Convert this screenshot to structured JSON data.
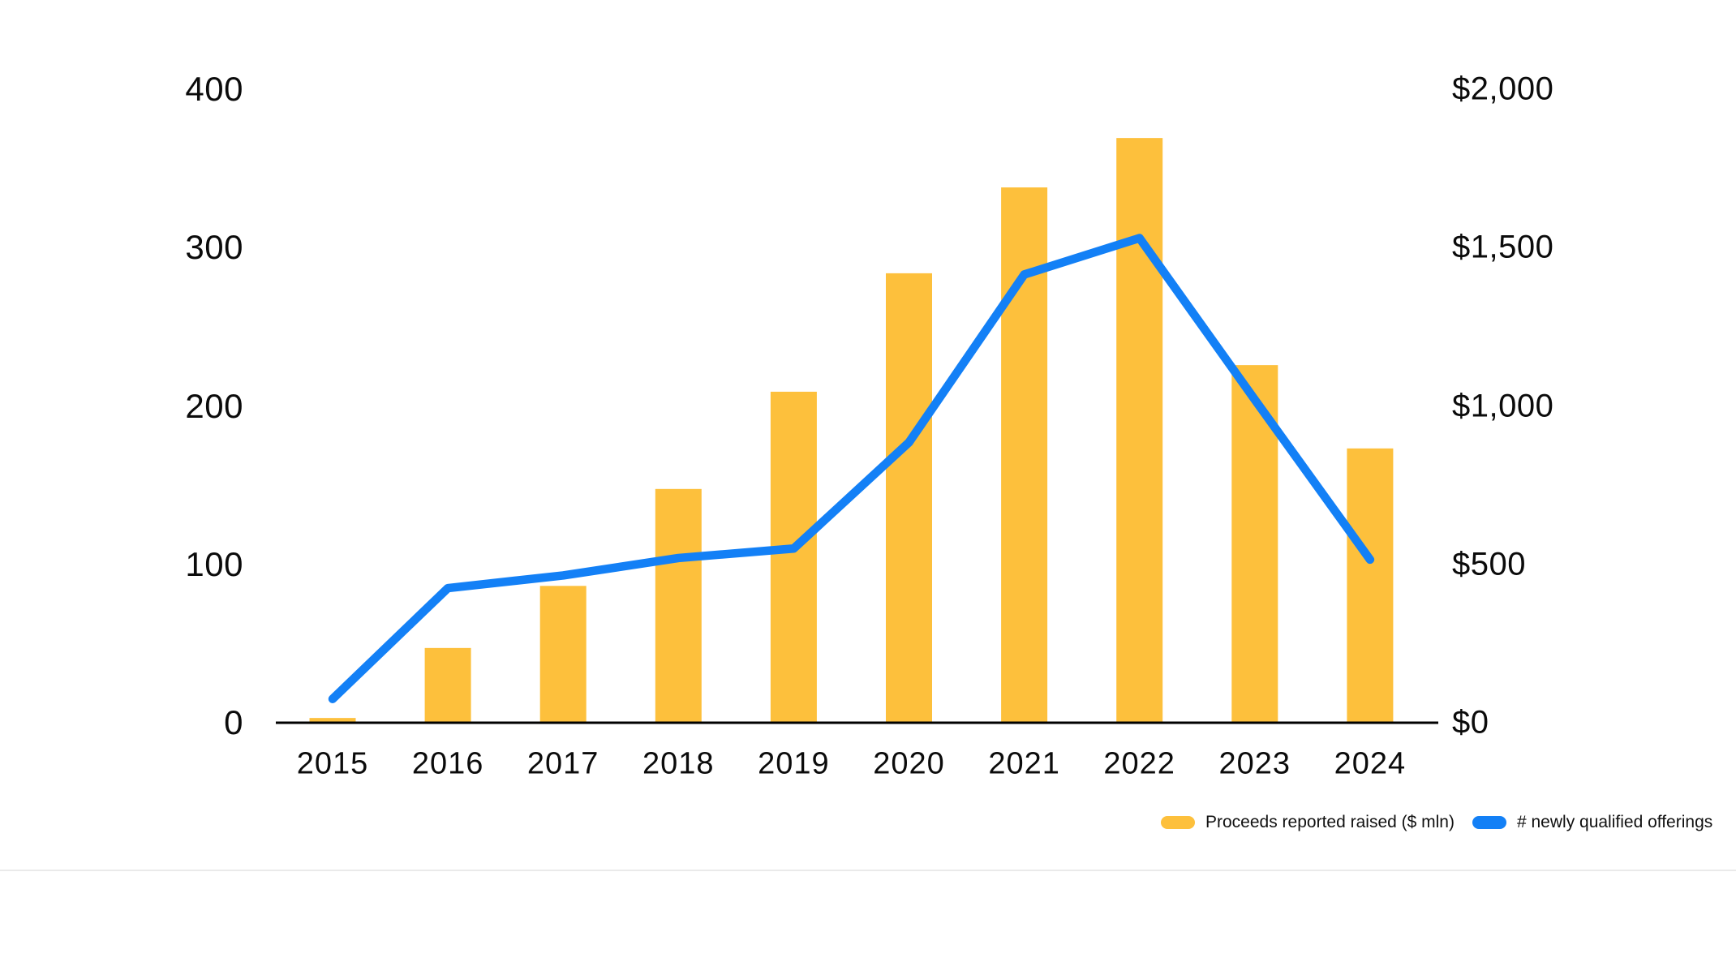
{
  "chart_data": {
    "type": "combo-bar-line",
    "categories": [
      "2015",
      "2016",
      "2017",
      "2018",
      "2019",
      "2020",
      "2021",
      "2022",
      "2023",
      "2024"
    ],
    "series": [
      {
        "name": "Proceeds reported raised ($ mln)",
        "type": "bar",
        "axis": "right",
        "color": "#FDC03C",
        "values": [
          15,
          236,
          432,
          738,
          1045,
          1419,
          1690,
          1846,
          1129,
          866
        ]
      },
      {
        "name": "# newly qualified offerings",
        "type": "line",
        "axis": "left",
        "color": "#1380F6",
        "values": [
          15,
          85,
          93,
          104,
          110,
          177,
          283,
          306,
          204,
          103
        ]
      }
    ],
    "left_axis": {
      "range": [
        0,
        400
      ],
      "tick_values": [
        0,
        100,
        200,
        300,
        400
      ],
      "tick_labels": [
        "0",
        "100",
        "200",
        "300",
        "400"
      ]
    },
    "right_axis": {
      "range": [
        0,
        2000
      ],
      "tick_values": [
        0,
        500,
        1000,
        1500,
        2000
      ],
      "tick_labels": [
        "$0",
        "$500",
        "$1,000",
        "$1,500",
        "$2,000"
      ]
    },
    "grid": false,
    "legend_position": "bottom-right",
    "title": "",
    "xlabel": "",
    "ylabel": ""
  },
  "legend": {
    "items": [
      {
        "label": "Proceeds reported raised ($ mln)",
        "color": "#FDC03C"
      },
      {
        "label": "# newly qualified offerings",
        "color": "#1380F6"
      }
    ]
  },
  "colors": {
    "bar": "#FDC03C",
    "line": "#1380F6",
    "axis": "#000000",
    "divider": "#EAEAEA",
    "text": "#0b0b0b"
  }
}
